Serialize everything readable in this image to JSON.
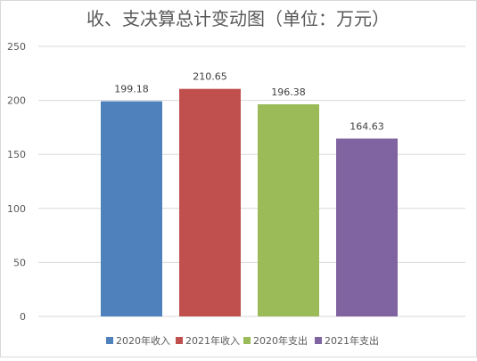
{
  "chart_data": {
    "type": "bar",
    "title": "收、支决算总计变动图（单位：万元）",
    "categories": [
      "2020年收入",
      "2021年收入",
      "2020年支出",
      "2021年支出"
    ],
    "values": [
      199.18,
      210.65,
      196.38,
      164.63
    ],
    "value_labels": [
      "199.18",
      "210.65",
      "196.38",
      "164.63"
    ],
    "colors": [
      "#4f81bd",
      "#c0504d",
      "#9bbb59",
      "#8064a2"
    ],
    "ylim": [
      0,
      250
    ],
    "yticks": [
      "0",
      "50",
      "100",
      "150",
      "200",
      "250"
    ],
    "grid": true,
    "legend": {
      "placement": "bottom",
      "items": [
        "2020年收入",
        "2021年收入",
        "2020年支出",
        "2021年支出"
      ]
    },
    "xlabel": "",
    "ylabel": ""
  }
}
